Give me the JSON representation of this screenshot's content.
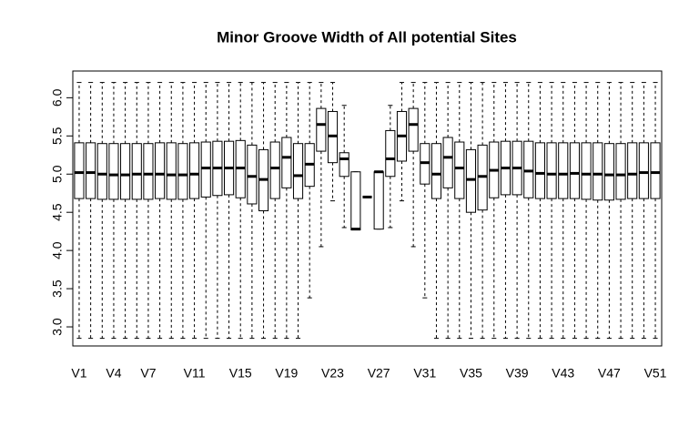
{
  "chart_data": {
    "type": "box",
    "title": "Minor Groove Width of All potential Sites",
    "categories": [
      "V1",
      null,
      null,
      "V4",
      null,
      null,
      "V7",
      null,
      null,
      null,
      "V11",
      null,
      null,
      null,
      "V15",
      null,
      null,
      null,
      "V19",
      null,
      null,
      null,
      "V23",
      null,
      null,
      null,
      "V27",
      null,
      null,
      null,
      "V31",
      null,
      null,
      null,
      "V35",
      null,
      null,
      null,
      "V39",
      null,
      null,
      null,
      "V43",
      null,
      null,
      null,
      "V47",
      null,
      null,
      null,
      "V51"
    ],
    "whisker_low": [
      2.85,
      2.85,
      2.85,
      2.85,
      2.85,
      2.85,
      2.85,
      2.85,
      2.85,
      2.85,
      2.85,
      2.85,
      2.85,
      2.85,
      2.85,
      2.85,
      2.85,
      2.85,
      2.85,
      2.85,
      3.38,
      4.05,
      4.65,
      4.3,
      4.27,
      4.7,
      4.28,
      4.3,
      4.65,
      4.05,
      3.38,
      2.85,
      2.85,
      2.85,
      2.85,
      2.85,
      2.85,
      2.85,
      2.85,
      2.85,
      2.85,
      2.85,
      2.85,
      2.85,
      2.85,
      2.85,
      2.85,
      2.85,
      2.85,
      2.85,
      2.85
    ],
    "q1": [
      4.68,
      4.68,
      4.67,
      4.67,
      4.67,
      4.67,
      4.67,
      4.68,
      4.67,
      4.67,
      4.68,
      4.7,
      4.72,
      4.73,
      4.69,
      4.61,
      4.52,
      4.68,
      4.82,
      4.68,
      4.84,
      5.3,
      5.15,
      4.97,
      4.27,
      4.7,
      4.28,
      4.97,
      5.17,
      5.3,
      4.87,
      4.68,
      4.82,
      4.68,
      4.5,
      4.53,
      4.69,
      4.73,
      4.73,
      4.69,
      4.68,
      4.68,
      4.68,
      4.68,
      4.67,
      4.66,
      4.66,
      4.67,
      4.68,
      4.68,
      4.68
    ],
    "median": [
      5.02,
      5.02,
      5.0,
      4.99,
      4.99,
      5.0,
      5.0,
      5.0,
      4.99,
      4.99,
      5.0,
      5.08,
      5.08,
      5.08,
      5.08,
      4.97,
      4.93,
      5.08,
      5.22,
      4.98,
      5.13,
      5.65,
      5.5,
      5.2,
      4.28,
      4.7,
      5.03,
      5.2,
      5.5,
      5.65,
      5.15,
      5.0,
      5.22,
      5.08,
      4.93,
      4.97,
      5.05,
      5.08,
      5.08,
      5.04,
      5.01,
      5.0,
      5.0,
      5.01,
      5.0,
      5.0,
      4.99,
      4.99,
      5.0,
      5.02,
      5.02
    ],
    "q3": [
      5.41,
      5.41,
      5.4,
      5.4,
      5.4,
      5.4,
      5.4,
      5.41,
      5.41,
      5.4,
      5.41,
      5.42,
      5.43,
      5.43,
      5.44,
      5.38,
      5.32,
      5.42,
      5.48,
      5.4,
      5.4,
      5.86,
      5.82,
      5.28,
      5.03,
      4.7,
      5.03,
      5.57,
      5.82,
      5.86,
      5.4,
      5.4,
      5.48,
      5.42,
      5.32,
      5.38,
      5.42,
      5.43,
      5.43,
      5.43,
      5.41,
      5.41,
      5.41,
      5.41,
      5.41,
      5.41,
      5.4,
      5.4,
      5.41,
      5.41,
      5.41
    ],
    "whisker_high": [
      6.2,
      6.2,
      6.2,
      6.2,
      6.2,
      6.2,
      6.2,
      6.2,
      6.2,
      6.2,
      6.2,
      6.2,
      6.2,
      6.2,
      6.2,
      6.2,
      6.2,
      6.2,
      6.2,
      6.2,
      6.2,
      6.2,
      6.2,
      5.9,
      5.03,
      4.7,
      5.03,
      5.9,
      6.2,
      6.2,
      6.2,
      6.2,
      6.2,
      6.2,
      6.2,
      6.2,
      6.2,
      6.2,
      6.2,
      6.2,
      6.2,
      6.2,
      6.2,
      6.2,
      6.2,
      6.2,
      6.2,
      6.2,
      6.2,
      6.2,
      6.2
    ],
    "color": "#ffffff",
    "ylim": [
      2.75,
      6.35
    ],
    "yticks": [
      {
        "value": 3,
        "label": "3.0"
      },
      {
        "value": 3.5,
        "label": "3.5"
      },
      {
        "value": 4,
        "label": "4.0"
      },
      {
        "value": 4.5,
        "label": "4.5"
      },
      {
        "value": 5,
        "label": "5.0"
      },
      {
        "value": 5.5,
        "label": "5.5"
      },
      {
        "value": 6,
        "label": "6.0"
      }
    ]
  }
}
